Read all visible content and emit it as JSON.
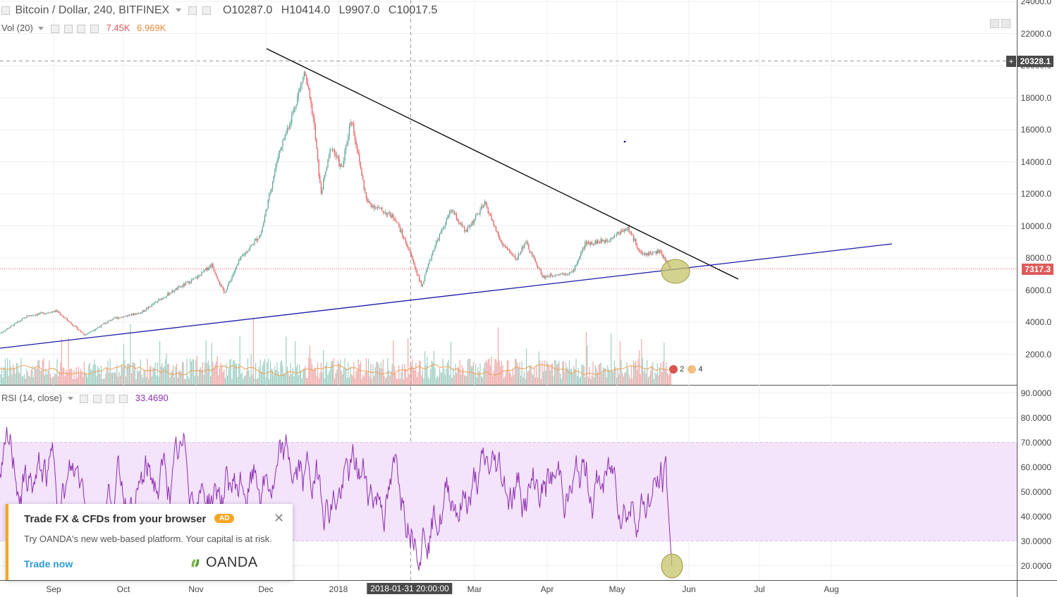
{
  "header": {
    "symbol": "Bitcoin / Dollar, 240, BITFINEX",
    "open_label": "O",
    "open": "10287.0",
    "high_label": "H",
    "high": "10414.0",
    "low_label": "L",
    "low": "9907.0",
    "close_label": "C",
    "close": "10017.5"
  },
  "volume_legend": {
    "label": "Vol (20)",
    "value1": "7.45K",
    "value2": "6.969K"
  },
  "rsi_legend": {
    "label": "RSI (14, close)",
    "value": "33.4690"
  },
  "price_axis": {
    "ticks": [
      "24000.0",
      "22000.0",
      "20000.0",
      "18000.0",
      "16000.0",
      "14000.0",
      "12000.0",
      "10000.0",
      "8000.0",
      "6000.0",
      "4000.0",
      "2000.0"
    ],
    "crosshair_price": "20328.1",
    "last_price": "7317.3"
  },
  "rsi_axis": {
    "ticks": [
      "90.0000",
      "80.0000",
      "70.0000",
      "60.0000",
      "50.0000",
      "40.0000",
      "30.0000",
      "20.0000"
    ]
  },
  "time_axis": {
    "labels": [
      "Sep",
      "Oct",
      "Nov",
      "Dec",
      "2018",
      "Mar",
      "Apr",
      "May",
      "Jun",
      "Jul",
      "Aug"
    ],
    "crosshair_time": "2018-01-31 20:00:00"
  },
  "events": {
    "count_a": "2",
    "count_b": "4"
  },
  "colors": {
    "up": "#53a18f",
    "down": "#e05a5a",
    "rsi": "#8e2fb0",
    "rsi_band": "#f3e3fb",
    "trend_black": "#000000",
    "trend_blue": "#1a1aa6",
    "last_price": "#e05a5a",
    "highlight": "#c4c46a"
  },
  "ad": {
    "title": "Trade FX & CFDs from your browser",
    "badge": "AD",
    "body": "Try OANDA's new web-based platform. Your capital is at risk.",
    "link": "Trade now",
    "brand": "OANDA",
    "close_icon": "close-icon"
  }
}
